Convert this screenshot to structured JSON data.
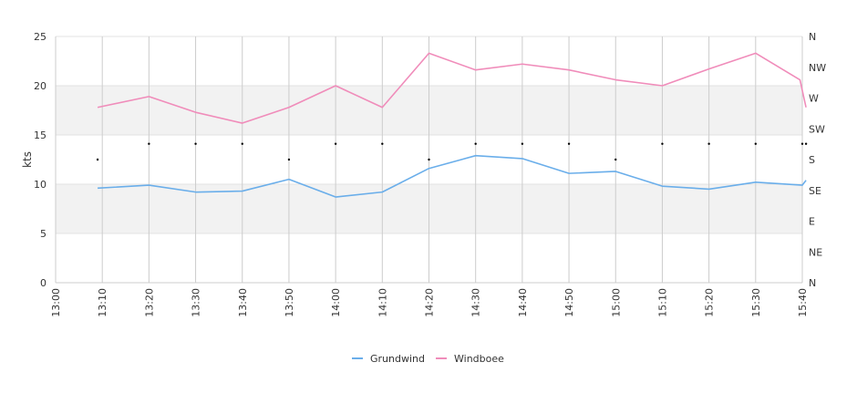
{
  "chart_data": {
    "type": "line",
    "ylabel": "kts",
    "ylim": [
      0,
      25
    ],
    "yticks": [
      "0",
      "5",
      "10",
      "15",
      "20",
      "25"
    ],
    "right_axis": {
      "labels": [
        "N",
        "NE",
        "E",
        "SE",
        "S",
        "SW",
        "W",
        "NW",
        "N"
      ]
    },
    "x_categories": [
      "13:00",
      "13:10",
      "13:20",
      "13:30",
      "13:40",
      "13:50",
      "14:00",
      "14:10",
      "14:20",
      "14:30",
      "14:40",
      "14:50",
      "15:00",
      "15:10",
      "15:20",
      "15:30",
      "15:40"
    ],
    "grid": "vertical lines at each tick, alternating horizontal bands",
    "legend_position": "bottom-center",
    "series": [
      {
        "name": "Grundwind",
        "color": "#6aaeea",
        "x": [
          0.9,
          2.0,
          3.0,
          4.0,
          5.0,
          6.0,
          7.0,
          8.0,
          9.0,
          10.0,
          11.0,
          12.0,
          13.0,
          14.0,
          15.0,
          16.0,
          16.08
        ],
        "values": [
          9.6,
          9.9,
          9.2,
          9.3,
          10.5,
          8.7,
          9.2,
          11.6,
          12.9,
          12.6,
          11.1,
          11.3,
          9.8,
          9.5,
          10.2,
          9.9,
          10.4
        ]
      },
      {
        "name": "Windboee",
        "color": "#f08cba",
        "x": [
          0.9,
          2.0,
          3.0,
          4.0,
          5.0,
          6.0,
          7.0,
          8.0,
          9.0,
          10.0,
          11.0,
          12.0,
          13.0,
          14.0,
          15.0,
          15.95,
          16.08
        ],
        "values": [
          17.8,
          18.9,
          17.3,
          16.2,
          17.8,
          20.0,
          17.8,
          23.3,
          21.6,
          22.2,
          21.6,
          20.6,
          20.0,
          21.7,
          23.3,
          20.6,
          17.8
        ]
      }
    ],
    "direction_dots": {
      "x": [
        0.9,
        2.0,
        3.0,
        4.0,
        5.0,
        6.0,
        7.0,
        8.0,
        9.0,
        10.0,
        11.0,
        12.0,
        13.0,
        14.0,
        15.0,
        16.0,
        16.08
      ],
      "values": [
        12.5,
        14.1,
        14.1,
        14.1,
        12.5,
        14.1,
        14.1,
        12.5,
        14.1,
        14.1,
        14.1,
        12.5,
        14.1,
        14.1,
        14.1,
        14.1,
        14.1
      ]
    }
  }
}
